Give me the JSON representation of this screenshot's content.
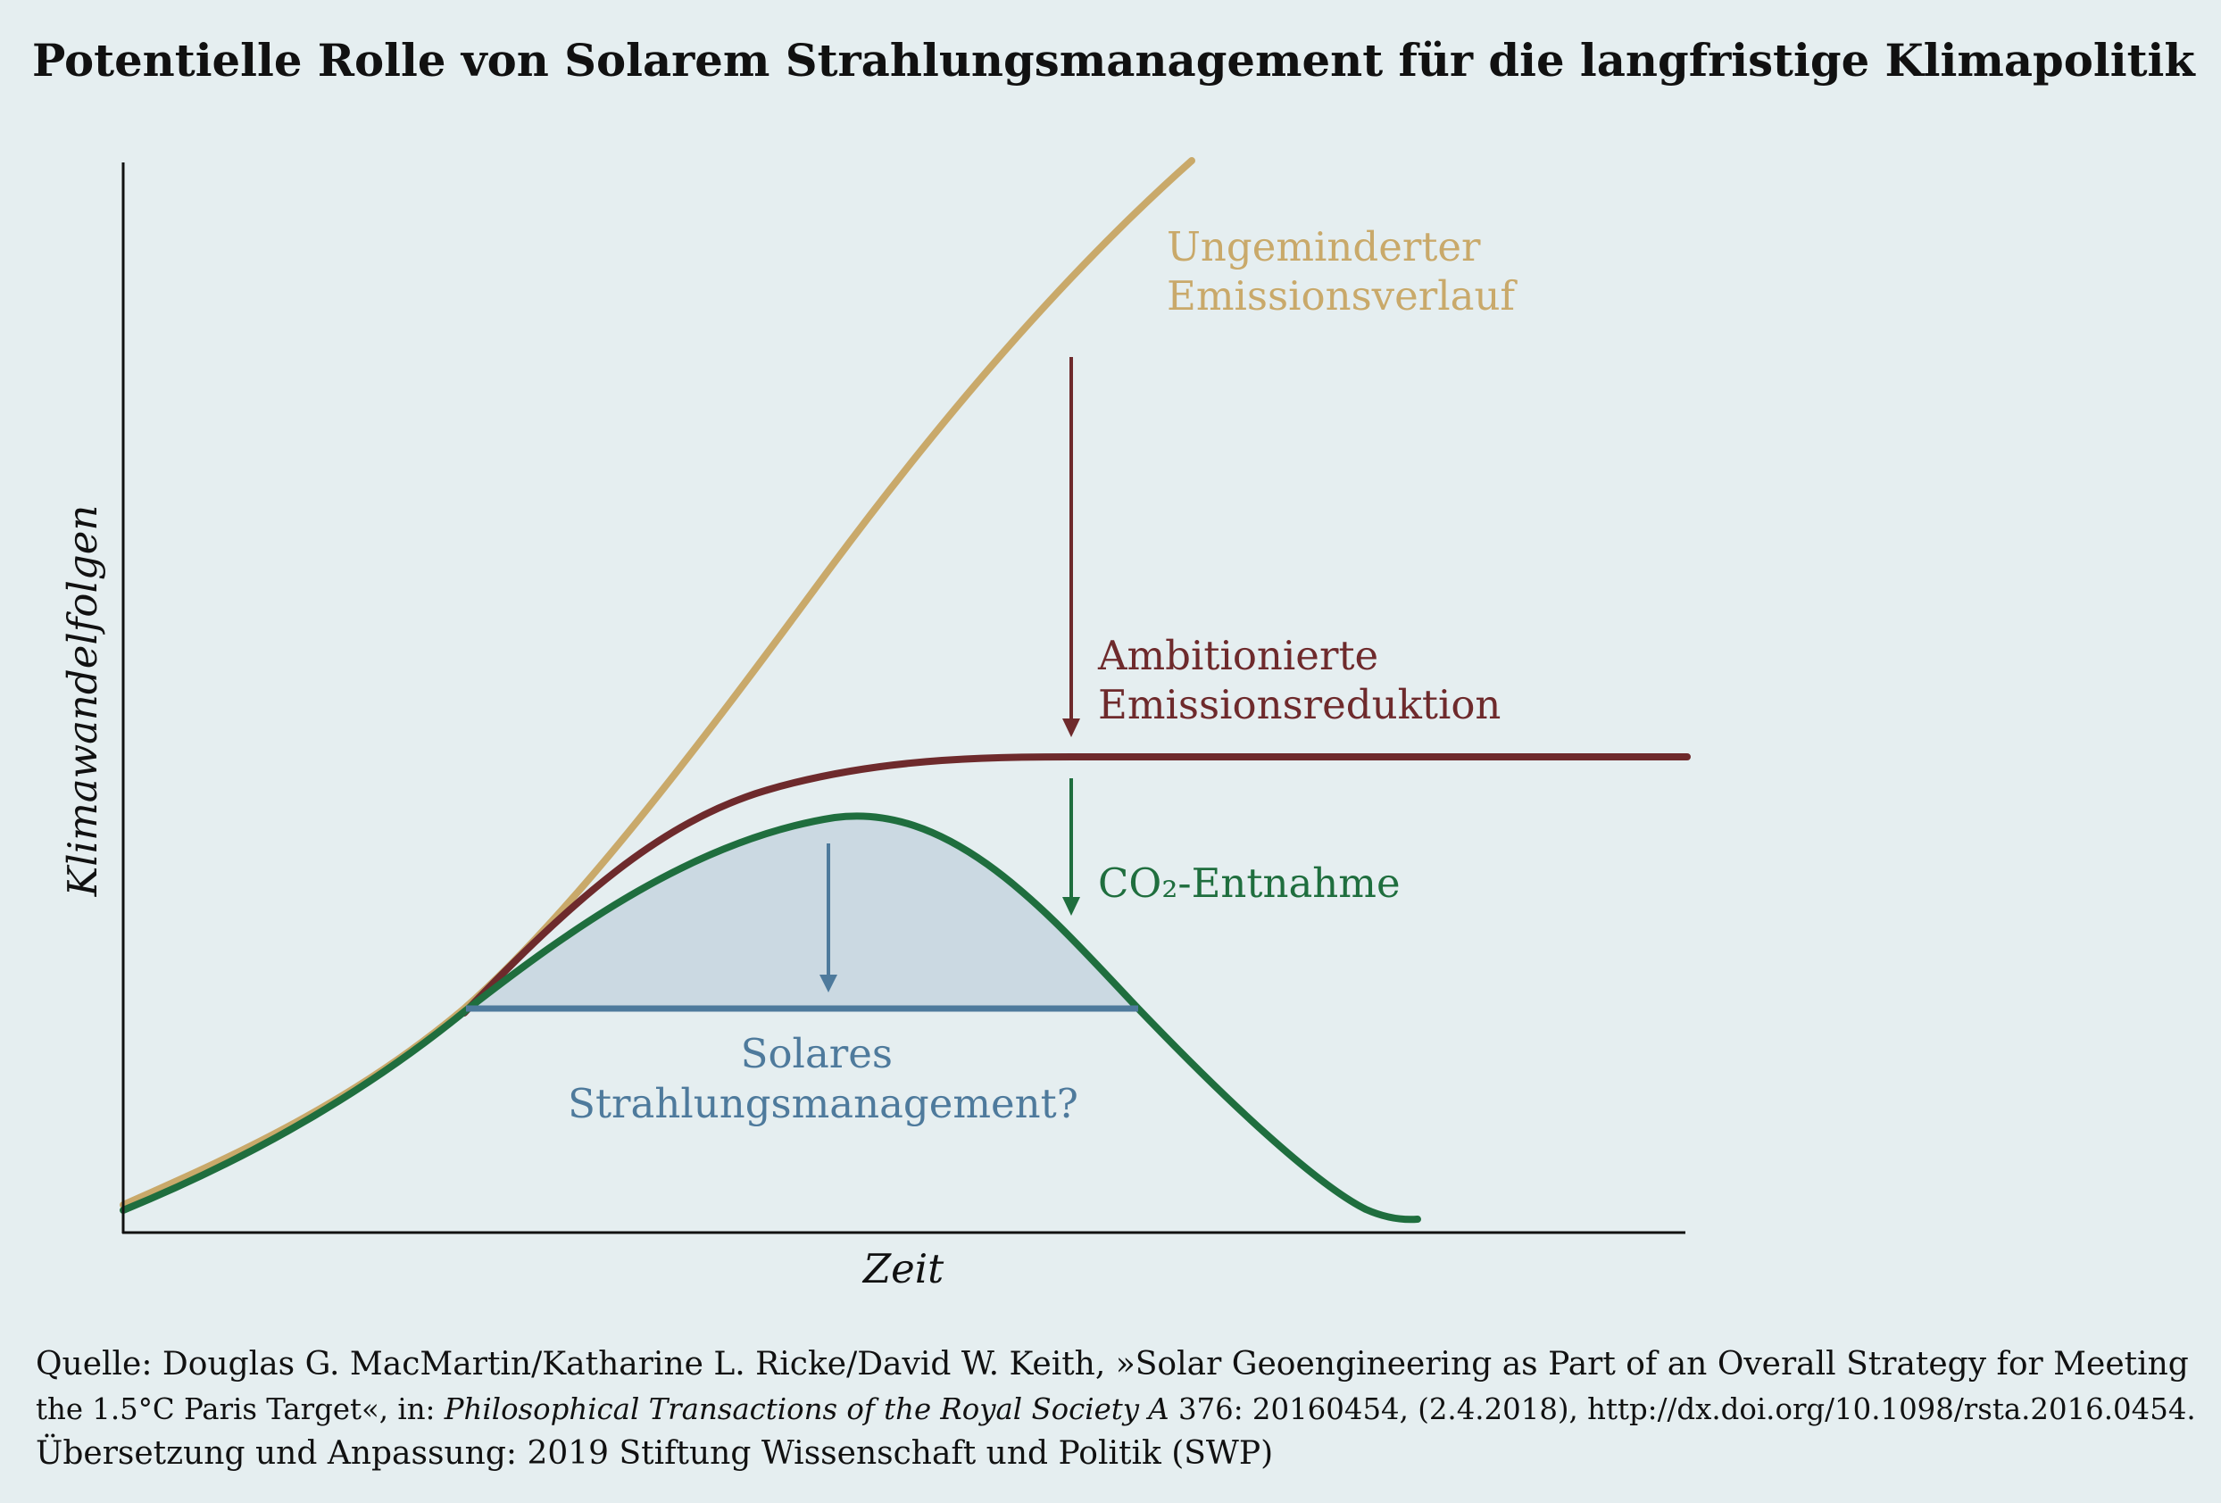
{
  "title": "Potentielle Rolle von Solarem Strahlungsmanagement für die langfristige Klimapolitik",
  "chart_data": {
    "type": "line",
    "title": "Potentielle Rolle von Solarem Strahlungsmanagement für die langfristige Klimapolitik",
    "xlabel": "Zeit",
    "ylabel": "Klimawandelfolgen",
    "axis_ticks": false,
    "grid": false,
    "series": [
      {
        "name": "Ungeminderter Emissionsverlauf",
        "label_lines": [
          "Ungeminderter",
          "Emissionsverlauf"
        ],
        "color": "#c9a96a"
      },
      {
        "name": "Ambitionierte Emissionsreduktion",
        "label_lines": [
          "Ambitionierte",
          "Emissionsreduktion"
        ],
        "color": "#6e2a2c"
      },
      {
        "name": "CO₂-Entnahme",
        "label_lines": [
          "CO₂-Entnahme"
        ],
        "color": "#1f6e3e"
      }
    ],
    "annotations": [
      {
        "name": "Solares Strahlungsmanagement?",
        "label_lines": [
          "Solares",
          "Strahlungsmanagement?"
        ],
        "color": "#4e7a9c",
        "fill": "#cbd9e2"
      }
    ]
  },
  "source": {
    "line1": "Quelle: Douglas G. MacMartin/Katharine L. Ricke/David W. Keith, »Solar Geoengineering as Part of an Overall Strategy for Meeting",
    "line2_a": "the 1.5°C Paris Target«, in: ",
    "line2_journal": "Philosophical Transactions of the Royal Society A",
    "line2_b": " 376: 20160454, (2.4.2018), http://dx.doi.org/10.1098/rsta.2016.0454.",
    "line3": "Übersetzung und Anpassung: 2019 Stiftung Wissenschaft und Politik (SWP)"
  }
}
